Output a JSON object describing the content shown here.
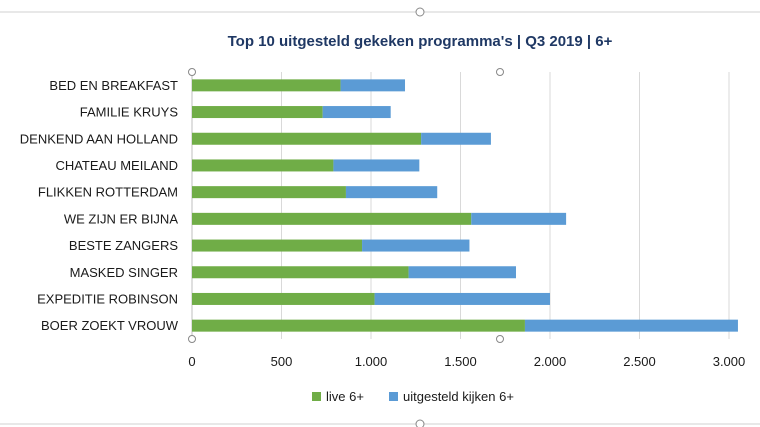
{
  "chart_data": {
    "type": "bar",
    "orientation": "horizontal",
    "stacked": true,
    "title": "Top 10 uitgesteld gekeken programma's | Q3 2019 | 6+",
    "categories": [
      "BED EN BREAKFAST",
      "FAMILIE KRUYS",
      "DENKEND AAN HOLLAND",
      "CHATEAU MEILAND",
      "FLIKKEN ROTTERDAM",
      "WE ZIJN ER BIJNA",
      "BESTE ZANGERS",
      "MASKED SINGER",
      "EXPEDITIE ROBINSON",
      "BOER ZOEKT VROUW"
    ],
    "series": [
      {
        "name": "live 6+",
        "color": "#70ad47",
        "values": [
          830,
          730,
          1280,
          790,
          860,
          1560,
          950,
          1210,
          1020,
          1860
        ]
      },
      {
        "name": "uitgesteld kijken 6+",
        "color": "#5b9bd5",
        "values": [
          360,
          380,
          390,
          480,
          510,
          530,
          600,
          600,
          980,
          1190
        ]
      }
    ],
    "xlim": [
      0,
      3000
    ],
    "xticks": [
      0,
      500,
      1000,
      1500,
      2000,
      2500,
      3000
    ],
    "xtick_labels": [
      "0",
      "500",
      "1.000",
      "1.500",
      "2.000",
      "2.500",
      "3.000"
    ],
    "grid": true,
    "legend_position": "bottom",
    "xlabel": "",
    "ylabel": ""
  }
}
